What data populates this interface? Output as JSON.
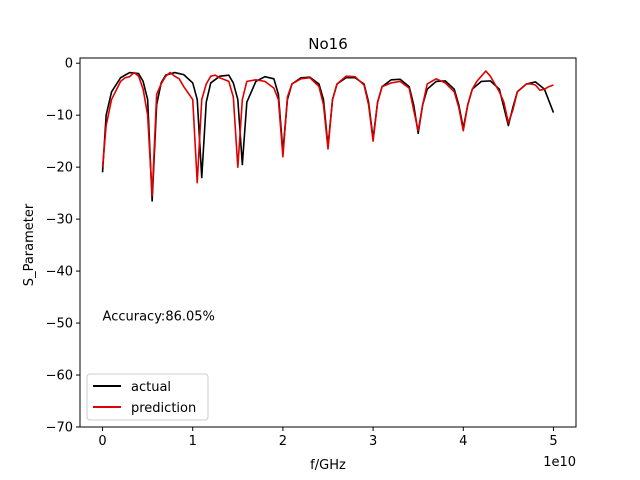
{
  "chart_data": {
    "type": "line",
    "title": "No16",
    "xlabel": "f/GHz",
    "ylabel": "S_Parameter",
    "x_offset_text": "1e10",
    "xlim": [
      -0.25,
      5.25
    ],
    "ylim": [
      -70,
      1
    ],
    "x_scale_factor": 10000000000.0,
    "x_ticks": [
      0,
      1,
      2,
      3,
      4,
      5
    ],
    "x_tick_labels": [
      "0",
      "1",
      "2",
      "3",
      "4",
      "5"
    ],
    "y_ticks": [
      0,
      -10,
      -20,
      -30,
      -40,
      -50,
      -60,
      -70
    ],
    "y_tick_labels": [
      "0",
      "−10",
      "−20",
      "−30",
      "−40",
      "−50",
      "−60",
      "−70"
    ],
    "annotation": "Accuracy:86.05%",
    "annotation_pos": {
      "x": 0.0,
      "y": -49.5
    },
    "grid": false,
    "legend_position": "lower-left",
    "series": [
      {
        "name": "actual",
        "color": "#000000",
        "x": [
          0.0,
          0.04,
          0.1,
          0.2,
          0.3,
          0.4,
          0.45,
          0.5,
          0.55,
          0.6,
          0.65,
          0.7,
          0.8,
          0.9,
          1.0,
          1.05,
          1.1,
          1.15,
          1.2,
          1.3,
          1.4,
          1.45,
          1.5,
          1.55,
          1.6,
          1.7,
          1.8,
          1.9,
          1.95,
          2.0,
          2.05,
          2.1,
          2.2,
          2.3,
          2.4,
          2.45,
          2.5,
          2.55,
          2.6,
          2.7,
          2.8,
          2.9,
          2.95,
          3.0,
          3.05,
          3.1,
          3.2,
          3.3,
          3.4,
          3.45,
          3.5,
          3.55,
          3.6,
          3.7,
          3.8,
          3.9,
          3.95,
          4.0,
          4.05,
          4.1,
          4.2,
          4.3,
          4.4,
          4.45,
          4.5,
          4.55,
          4.6,
          4.7,
          4.8,
          4.9,
          5.0
        ],
        "y": [
          -21.0,
          -10.0,
          -5.5,
          -2.8,
          -1.8,
          -2.0,
          -3.5,
          -7.0,
          -26.5,
          -8.0,
          -3.8,
          -2.3,
          -1.8,
          -2.2,
          -3.8,
          -7.0,
          -22.0,
          -7.5,
          -3.8,
          -2.5,
          -2.3,
          -3.8,
          -7.0,
          -19.5,
          -7.5,
          -3.5,
          -2.6,
          -3.0,
          -6.0,
          -17.0,
          -7.0,
          -4.0,
          -2.8,
          -2.7,
          -4.0,
          -7.0,
          -16.0,
          -7.0,
          -4.0,
          -2.8,
          -2.8,
          -4.0,
          -7.5,
          -14.5,
          -7.5,
          -4.5,
          -3.2,
          -3.1,
          -4.5,
          -8.0,
          -13.5,
          -8.0,
          -5.0,
          -3.5,
          -3.4,
          -5.0,
          -8.0,
          -12.5,
          -8.0,
          -5.0,
          -3.5,
          -3.4,
          -5.0,
          -8.5,
          -12.0,
          -8.5,
          -5.5,
          -4.0,
          -3.6,
          -5.0,
          -9.5
        ]
      },
      {
        "name": "prediction",
        "color": "#e00000",
        "x": [
          0.0,
          0.04,
          0.1,
          0.2,
          0.25,
          0.3,
          0.35,
          0.4,
          0.45,
          0.5,
          0.55,
          0.6,
          0.65,
          0.7,
          0.75,
          0.8,
          0.85,
          0.9,
          1.0,
          1.05,
          1.1,
          1.15,
          1.2,
          1.25,
          1.3,
          1.4,
          1.45,
          1.5,
          1.55,
          1.6,
          1.7,
          1.8,
          1.9,
          1.95,
          2.0,
          2.05,
          2.1,
          2.2,
          2.3,
          2.4,
          2.45,
          2.5,
          2.55,
          2.6,
          2.7,
          2.8,
          2.9,
          2.95,
          3.0,
          3.05,
          3.1,
          3.2,
          3.3,
          3.4,
          3.45,
          3.5,
          3.55,
          3.6,
          3.7,
          3.8,
          3.9,
          3.95,
          4.0,
          4.05,
          4.1,
          4.15,
          4.2,
          4.25,
          4.3,
          4.35,
          4.4,
          4.45,
          4.5,
          4.55,
          4.6,
          4.7,
          4.75,
          4.8,
          4.85,
          4.9,
          4.95,
          5.0
        ],
        "y": [
          -20.0,
          -12.0,
          -7.0,
          -3.5,
          -2.8,
          -2.6,
          -1.8,
          -2.5,
          -5.0,
          -10.0,
          -25.5,
          -6.0,
          -4.0,
          -2.5,
          -1.8,
          -2.5,
          -3.0,
          -4.5,
          -7.0,
          -23.0,
          -7.0,
          -4.0,
          -2.5,
          -2.3,
          -2.8,
          -3.5,
          -6.5,
          -20.0,
          -7.0,
          -3.5,
          -3.2,
          -3.5,
          -4.8,
          -7.0,
          -18.0,
          -6.5,
          -4.0,
          -3.0,
          -2.8,
          -4.5,
          -8.0,
          -16.5,
          -7.0,
          -4.0,
          -2.5,
          -2.6,
          -4.2,
          -8.0,
          -15.0,
          -7.5,
          -4.5,
          -3.8,
          -3.5,
          -4.8,
          -9.0,
          -13.0,
          -8.0,
          -4.0,
          -3.0,
          -3.8,
          -5.5,
          -8.5,
          -13.0,
          -8.0,
          -5.0,
          -3.5,
          -2.5,
          -1.5,
          -2.5,
          -4.0,
          -5.5,
          -7.5,
          -11.5,
          -9.0,
          -5.5,
          -4.0,
          -4.0,
          -4.2,
          -5.2,
          -5.0,
          -4.5,
          -4.2
        ]
      }
    ]
  }
}
